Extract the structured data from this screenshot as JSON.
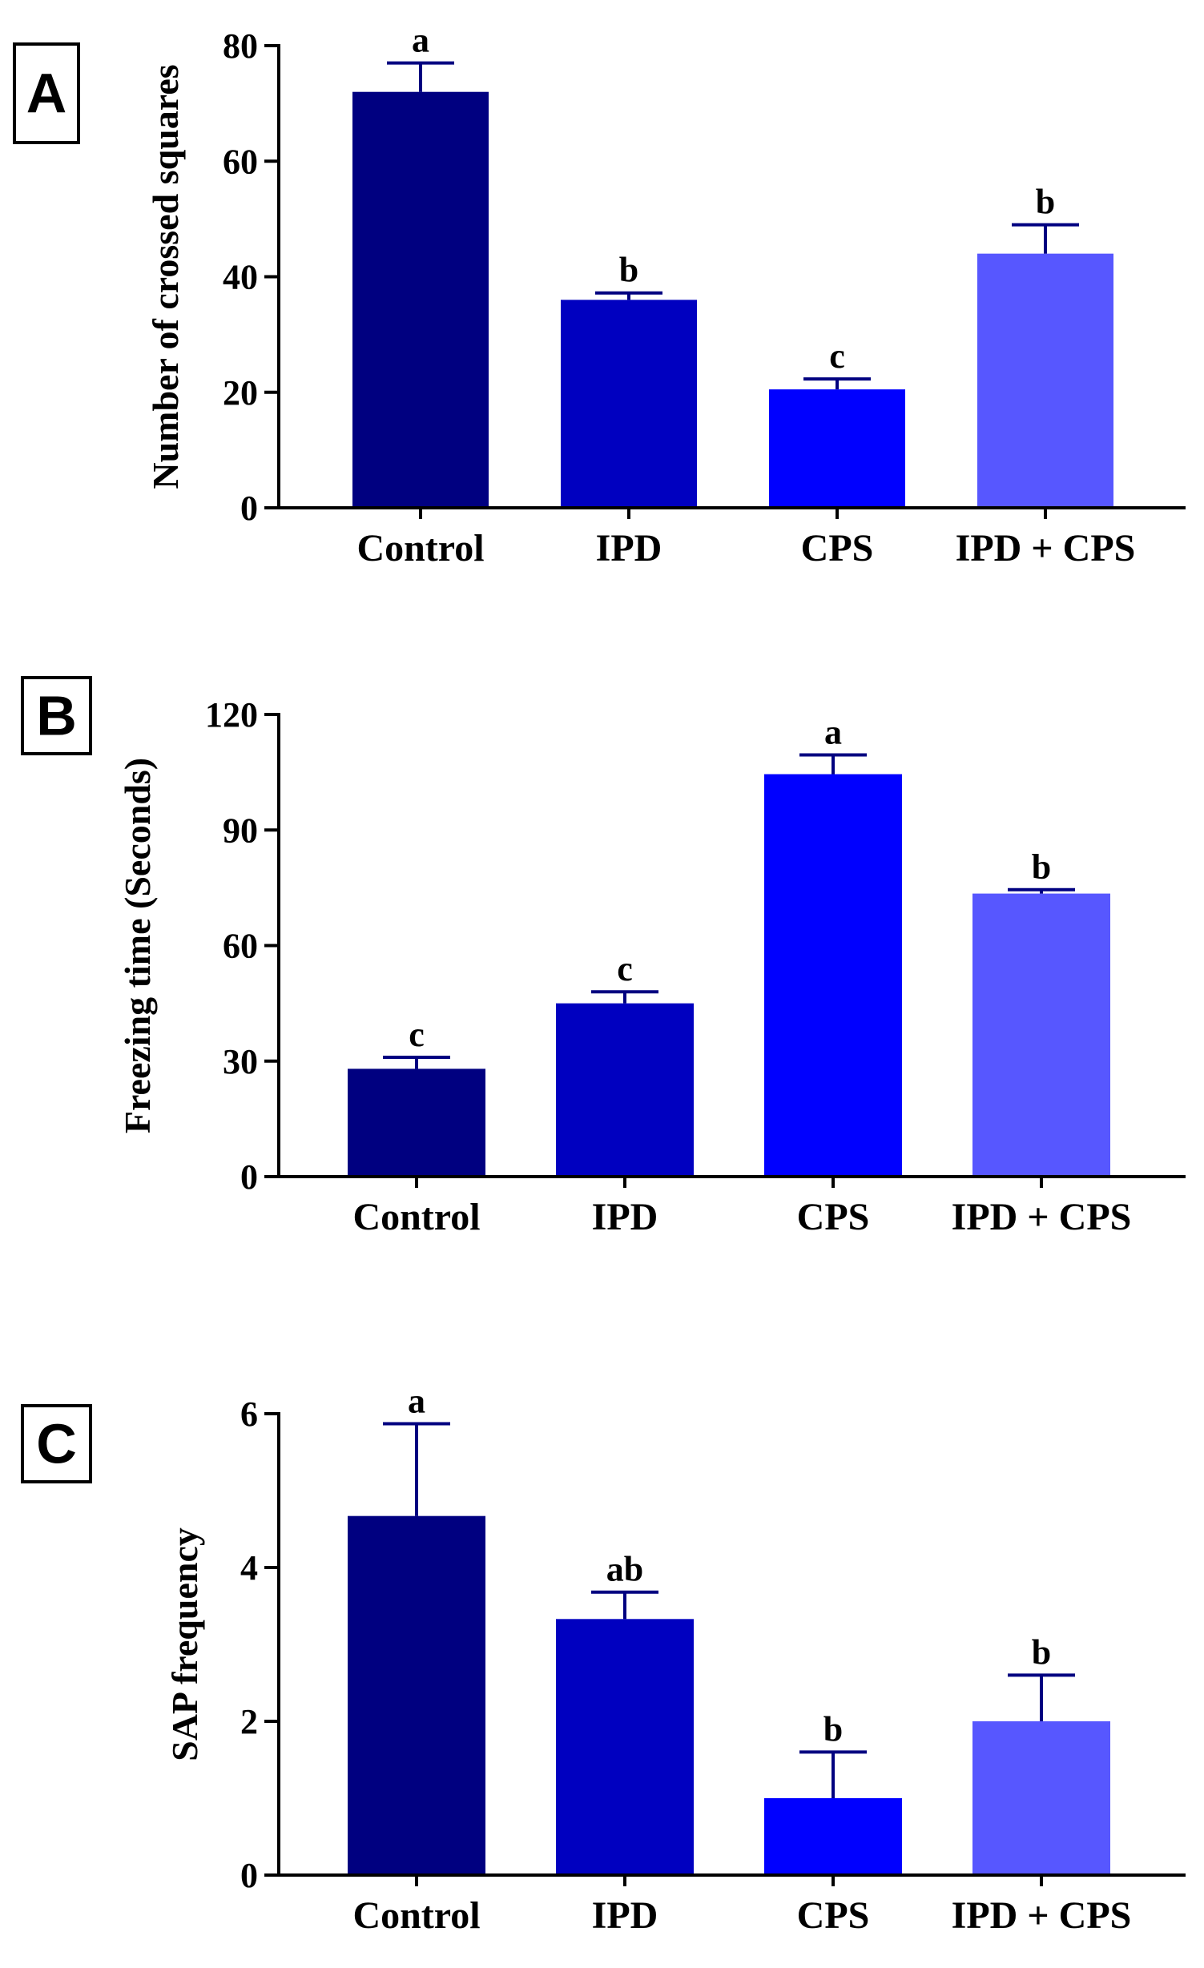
{
  "figure": {
    "colors": {
      "axis": "#000000",
      "errorbar": "#000080",
      "bars": [
        "#000080",
        "#0000C0",
        "#0000FF",
        "#5757FF"
      ]
    }
  },
  "chart_data": [
    {
      "panel_label": "A",
      "type": "bar",
      "title": "",
      "xlabel": "",
      "ylabel": "Number of crossed squares",
      "categories": [
        "Control",
        "IPD",
        "CPS",
        "IPD + CPS"
      ],
      "values": [
        72,
        36,
        20.5,
        44
      ],
      "errors": [
        5,
        1.2,
        1.8,
        5
      ],
      "significance": [
        "a",
        "b",
        "c",
        "b"
      ],
      "ylim": [
        0,
        80
      ],
      "yticks": [
        0,
        20,
        40,
        60,
        80
      ],
      "grid": false
    },
    {
      "panel_label": "B",
      "type": "bar",
      "title": "",
      "xlabel": "",
      "ylabel": "Freezing time (Seconds)",
      "categories": [
        "Control",
        "IPD",
        "CPS",
        "IPD + CPS"
      ],
      "values": [
        28,
        45,
        104.5,
        73.5
      ],
      "errors": [
        3,
        3,
        5,
        1
      ],
      "significance": [
        "c",
        "c",
        "a",
        "b"
      ],
      "ylim": [
        0,
        120
      ],
      "yticks": [
        0,
        30,
        60,
        90,
        120
      ],
      "grid": false
    },
    {
      "panel_label": "C",
      "type": "bar",
      "title": "",
      "xlabel": "",
      "ylabel": "SAP frequency",
      "categories": [
        "Control",
        "IPD",
        "CPS",
        "IPD + CPS"
      ],
      "values": [
        4.67,
        3.33,
        1.0,
        2.0
      ],
      "errors": [
        1.2,
        0.35,
        0.6,
        0.6
      ],
      "significance": [
        "a",
        "ab",
        "b",
        "b"
      ],
      "ylim": [
        0,
        6
      ],
      "yticks": [
        0,
        2,
        4,
        6
      ],
      "grid": false
    }
  ]
}
